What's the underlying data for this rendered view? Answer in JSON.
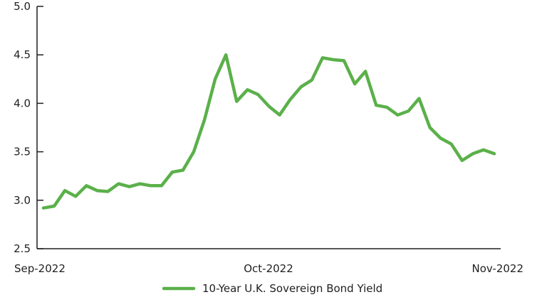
{
  "chart_data": {
    "type": "line",
    "title": "",
    "xlabel": "",
    "ylabel": "",
    "ylim": [
      2.5,
      5.0
    ],
    "y_ticks": [
      "2.5",
      "3.0",
      "3.5",
      "4.0",
      "4.5",
      "5.0"
    ],
    "x_ticks": [
      "Sep-2022",
      "Oct-2022",
      "Nov-2022"
    ],
    "grid": false,
    "legend_position": "bottom-center",
    "series": [
      {
        "name": "10-Year U.K. Sovereign Bond Yield",
        "color": "#5bb04a",
        "values": [
          2.92,
          2.94,
          3.1,
          3.04,
          3.15,
          3.1,
          3.09,
          3.17,
          3.14,
          3.17,
          3.15,
          3.15,
          3.29,
          3.31,
          3.5,
          3.83,
          4.25,
          4.5,
          4.02,
          4.14,
          4.09,
          3.97,
          3.88,
          4.04,
          4.17,
          4.24,
          4.47,
          4.45,
          4.44,
          4.2,
          4.33,
          3.98,
          3.96,
          3.88,
          3.92,
          4.05,
          3.75,
          3.64,
          3.58,
          3.41,
          3.48,
          3.52,
          3.48
        ]
      }
    ]
  }
}
